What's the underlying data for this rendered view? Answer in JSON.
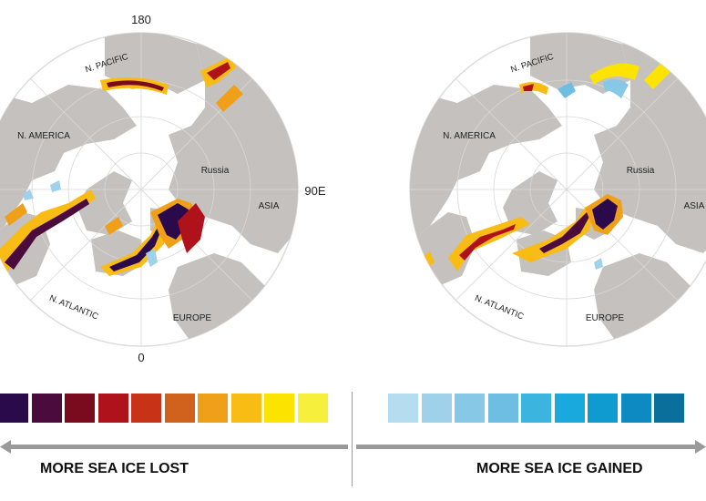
{
  "maps": [
    {
      "id": "lost",
      "coord_labels": {
        "top": "180",
        "bottom": "0",
        "right": "90E"
      },
      "region_labels": {
        "pacific": "N. PACIFIC",
        "america": "N. AMERICA",
        "russia": "Russia",
        "asia": "ASIA",
        "atlantic": "N. ATLANTIC",
        "europe": "EUROPE"
      }
    },
    {
      "id": "gained",
      "region_labels": {
        "pacific": "N. PACIFIC",
        "america": "N. AMERICA",
        "russia": "Russia",
        "asia": "ASIA",
        "atlantic": "N. ATLANTIC",
        "europe": "EUROPE"
      }
    }
  ],
  "legend": {
    "lost_caption": "MORE SEA ICE LOST",
    "gained_caption": "MORE SEA ICE GAINED",
    "lost_colors": [
      "#2a0a4a",
      "#4b0b3c",
      "#7a0a1e",
      "#b0121c",
      "#c83318",
      "#d0621e",
      "#f0a018",
      "#f8bc14",
      "#fce400",
      "#f6f03c"
    ],
    "gained_colors": [
      "#b6dcef",
      "#9fd2ea",
      "#87c8e6",
      "#6ebde2",
      "#3cb4e0",
      "#1aa9dc",
      "#0f9ad0",
      "#0e8ac2",
      "#0a6f9c"
    ]
  },
  "colors": {
    "land": "#c4c1be",
    "ocean": "#ffffff",
    "disk_edge": "#dcdcdc",
    "grid": "#d8d8d8",
    "arrow": "#9a9a9a"
  }
}
